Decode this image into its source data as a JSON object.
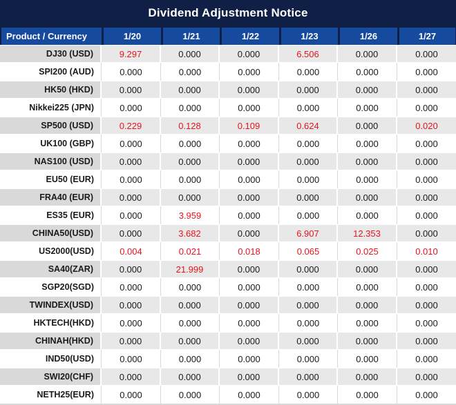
{
  "title": "Dividend Adjustment Notice",
  "colors": {
    "title_bar_navy": "#101f45",
    "header_blue": "#154a9e",
    "row_gray": "#e8e8e8",
    "product_col_gray": "#d9d9d9",
    "grid_line_gray": "#d9d9d9",
    "negative_red": "#e8131d",
    "text_black": "#1a1a1a",
    "header_text": "#ffffff"
  },
  "table": {
    "columns": [
      "Product / Currency",
      "1/20",
      "1/21",
      "1/22",
      "1/23",
      "1/26",
      "1/27"
    ],
    "rows": [
      {
        "product": "DJ30 (USD)",
        "values": [
          "9.297",
          "0.000",
          "0.000",
          "6.506",
          "0.000",
          "0.000"
        ],
        "red": [
          true,
          false,
          false,
          true,
          false,
          false
        ]
      },
      {
        "product": "SPI200 (AUD)",
        "values": [
          "0.000",
          "0.000",
          "0.000",
          "0.000",
          "0.000",
          "0.000"
        ],
        "red": [
          false,
          false,
          false,
          false,
          false,
          false
        ]
      },
      {
        "product": "HK50 (HKD)",
        "values": [
          "0.000",
          "0.000",
          "0.000",
          "0.000",
          "0.000",
          "0.000"
        ],
        "red": [
          false,
          false,
          false,
          false,
          false,
          false
        ]
      },
      {
        "product": "Nikkei225 (JPN)",
        "values": [
          "0.000",
          "0.000",
          "0.000",
          "0.000",
          "0.000",
          "0.000"
        ],
        "red": [
          false,
          false,
          false,
          false,
          false,
          false
        ]
      },
      {
        "product": "SP500 (USD)",
        "values": [
          "0.229",
          "0.128",
          "0.109",
          "0.624",
          "0.000",
          "0.020"
        ],
        "red": [
          true,
          true,
          true,
          true,
          false,
          true
        ]
      },
      {
        "product": "UK100 (GBP)",
        "values": [
          "0.000",
          "0.000",
          "0.000",
          "0.000",
          "0.000",
          "0.000"
        ],
        "red": [
          false,
          false,
          false,
          false,
          false,
          false
        ]
      },
      {
        "product": "NAS100 (USD)",
        "values": [
          "0.000",
          "0.000",
          "0.000",
          "0.000",
          "0.000",
          "0.000"
        ],
        "red": [
          false,
          false,
          false,
          false,
          false,
          false
        ]
      },
      {
        "product": "EU50 (EUR)",
        "values": [
          "0.000",
          "0.000",
          "0.000",
          "0.000",
          "0.000",
          "0.000"
        ],
        "red": [
          false,
          false,
          false,
          false,
          false,
          false
        ]
      },
      {
        "product": "FRA40 (EUR)",
        "values": [
          "0.000",
          "0.000",
          "0.000",
          "0.000",
          "0.000",
          "0.000"
        ],
        "red": [
          false,
          false,
          false,
          false,
          false,
          false
        ]
      },
      {
        "product": "ES35 (EUR)",
        "values": [
          "0.000",
          "3.959",
          "0.000",
          "0.000",
          "0.000",
          "0.000"
        ],
        "red": [
          false,
          true,
          false,
          false,
          false,
          false
        ]
      },
      {
        "product": "CHINA50(USD)",
        "values": [
          "0.000",
          "3.682",
          "0.000",
          "6.907",
          "12.353",
          "0.000"
        ],
        "red": [
          false,
          true,
          false,
          true,
          true,
          false
        ]
      },
      {
        "product": "US2000(USD)",
        "values": [
          "0.004",
          "0.021",
          "0.018",
          "0.065",
          "0.025",
          "0.010"
        ],
        "red": [
          true,
          true,
          true,
          true,
          true,
          true
        ]
      },
      {
        "product": "SA40(ZAR)",
        "values": [
          "0.000",
          "21.999",
          "0.000",
          "0.000",
          "0.000",
          "0.000"
        ],
        "red": [
          false,
          true,
          false,
          false,
          false,
          false
        ]
      },
      {
        "product": "SGP20(SGD)",
        "values": [
          "0.000",
          "0.000",
          "0.000",
          "0.000",
          "0.000",
          "0.000"
        ],
        "red": [
          false,
          false,
          false,
          false,
          false,
          false
        ]
      },
      {
        "product": "TWINDEX(USD)",
        "values": [
          "0.000",
          "0.000",
          "0.000",
          "0.000",
          "0.000",
          "0.000"
        ],
        "red": [
          false,
          false,
          false,
          false,
          false,
          false
        ]
      },
      {
        "product": "HKTECH(HKD)",
        "values": [
          "0.000",
          "0.000",
          "0.000",
          "0.000",
          "0.000",
          "0.000"
        ],
        "red": [
          false,
          false,
          false,
          false,
          false,
          false
        ]
      },
      {
        "product": "CHINAH(HKD)",
        "values": [
          "0.000",
          "0.000",
          "0.000",
          "0.000",
          "0.000",
          "0.000"
        ],
        "red": [
          false,
          false,
          false,
          false,
          false,
          false
        ]
      },
      {
        "product": "IND50(USD)",
        "values": [
          "0.000",
          "0.000",
          "0.000",
          "0.000",
          "0.000",
          "0.000"
        ],
        "red": [
          false,
          false,
          false,
          false,
          false,
          false
        ]
      },
      {
        "product": "SWI20(CHF)",
        "values": [
          "0.000",
          "0.000",
          "0.000",
          "0.000",
          "0.000",
          "0.000"
        ],
        "red": [
          false,
          false,
          false,
          false,
          false,
          false
        ]
      },
      {
        "product": "NETH25(EUR)",
        "values": [
          "0.000",
          "0.000",
          "0.000",
          "0.000",
          "0.000",
          "0.000"
        ],
        "red": [
          false,
          false,
          false,
          false,
          false,
          false
        ]
      }
    ]
  }
}
